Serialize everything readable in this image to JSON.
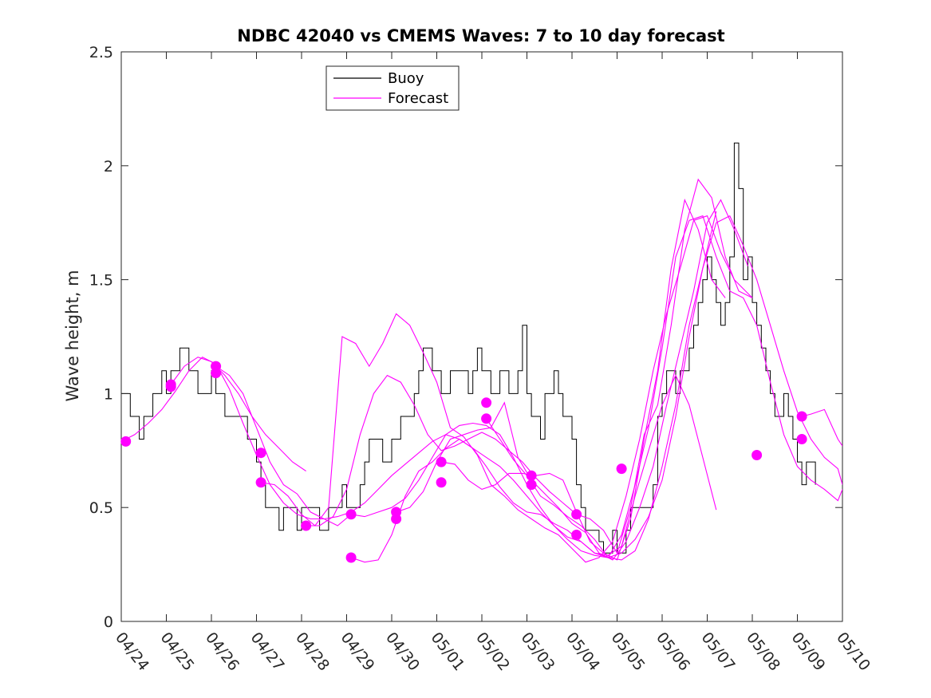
{
  "chart_data": {
    "type": "line",
    "title": "NDBC 42040 vs CMEMS Waves: 7 to 10 day forecast",
    "xlabel": "",
    "ylabel": "Wave height, m",
    "xlim": [
      0,
      16
    ],
    "ylim": [
      0,
      2.5
    ],
    "x_tick_labels": [
      "04/24",
      "04/25",
      "04/26",
      "04/27",
      "04/28",
      "04/29",
      "04/30",
      "05/01",
      "05/02",
      "05/03",
      "05/04",
      "05/05",
      "05/06",
      "05/07",
      "05/08",
      "05/09",
      "05/10"
    ],
    "y_ticks": [
      0,
      0.5,
      1,
      1.5,
      2,
      2.5
    ],
    "y_tick_labels": [
      "0",
      "0.5",
      "1",
      "1.5",
      "2",
      "2.5"
    ],
    "grid": false,
    "legend": {
      "position": "top-left",
      "entries": [
        {
          "label": "Buoy",
          "color": "#000000"
        },
        {
          "label": "Forecast",
          "color": "#ff00ff"
        }
      ]
    },
    "colors": {
      "buoy": "#000000",
      "forecast": "#ff00ff"
    },
    "buoy": {
      "name": "Buoy",
      "x": [
        0.0,
        0.1,
        0.2,
        0.3,
        0.4,
        0.5,
        0.6,
        0.7,
        0.8,
        0.9,
        1.0,
        1.1,
        1.2,
        1.3,
        1.4,
        1.5,
        1.6,
        1.7,
        1.8,
        1.9,
        2.0,
        2.1,
        2.2,
        2.3,
        2.4,
        2.5,
        2.6,
        2.7,
        2.8,
        2.9,
        3.0,
        3.1,
        3.2,
        3.3,
        3.4,
        3.5,
        3.6,
        3.7,
        3.8,
        3.9,
        4.0,
        4.1,
        4.2,
        4.3,
        4.4,
        4.5,
        4.6,
        4.7,
        4.8,
        4.9,
        5.0,
        5.1,
        5.2,
        5.3,
        5.4,
        5.5,
        5.6,
        5.7,
        5.8,
        5.9,
        6.0,
        6.1,
        6.2,
        6.3,
        6.4,
        6.5,
        6.6,
        6.7,
        6.8,
        6.9,
        7.0,
        7.1,
        7.2,
        7.3,
        7.4,
        7.5,
        7.6,
        7.7,
        7.8,
        7.9,
        8.0,
        8.1,
        8.2,
        8.3,
        8.4,
        8.5,
        8.6,
        8.7,
        8.8,
        8.9,
        9.0,
        9.1,
        9.2,
        9.3,
        9.4,
        9.5,
        9.6,
        9.7,
        9.8,
        9.9,
        10.0,
        10.1,
        10.2,
        10.3,
        10.4,
        10.5,
        10.6,
        10.7,
        10.8,
        10.9,
        11.0,
        11.1,
        11.2,
        11.3,
        11.4,
        11.5,
        11.6,
        11.7,
        11.8,
        11.9,
        12.0,
        12.1,
        12.2,
        12.3,
        12.4,
        12.5,
        12.6,
        12.7,
        12.8,
        12.9,
        13.0,
        13.1,
        13.2,
        13.3,
        13.4,
        13.5,
        13.6,
        13.7,
        13.8,
        13.9,
        14.0,
        14.1,
        14.2,
        14.3,
        14.4,
        14.5,
        14.6,
        14.7,
        14.8,
        14.9,
        15.0,
        15.1,
        15.2,
        15.3,
        15.4
      ],
      "y": [
        1.0,
        1.0,
        0.9,
        0.9,
        0.8,
        0.9,
        0.9,
        1.0,
        1.0,
        1.1,
        1.0,
        1.1,
        1.1,
        1.2,
        1.2,
        1.1,
        1.1,
        1.0,
        1.0,
        1.0,
        1.1,
        1.0,
        1.0,
        0.9,
        0.9,
        0.9,
        0.9,
        0.9,
        0.8,
        0.8,
        0.7,
        0.6,
        0.5,
        0.5,
        0.5,
        0.4,
        0.5,
        0.5,
        0.5,
        0.4,
        0.5,
        0.5,
        0.5,
        0.5,
        0.4,
        0.4,
        0.5,
        0.5,
        0.5,
        0.6,
        0.5,
        0.5,
        0.5,
        0.6,
        0.7,
        0.8,
        0.8,
        0.8,
        0.7,
        0.7,
        0.8,
        0.8,
        0.9,
        0.9,
        0.9,
        1.0,
        1.1,
        1.2,
        1.2,
        1.1,
        1.1,
        1.0,
        1.0,
        1.1,
        1.1,
        1.1,
        1.1,
        1.0,
        1.1,
        1.2,
        1.1,
        1.1,
        1.0,
        1.0,
        1.1,
        1.1,
        1.0,
        1.0,
        1.1,
        1.3,
        1.0,
        0.9,
        0.9,
        0.8,
        1.0,
        1.0,
        1.1,
        1.0,
        0.9,
        0.9,
        0.8,
        0.6,
        0.5,
        0.4,
        0.4,
        0.4,
        0.35,
        0.3,
        0.3,
        0.4,
        0.3,
        0.3,
        0.4,
        0.5,
        0.5,
        0.5,
        0.5,
        0.5,
        0.6,
        0.9,
        1.0,
        1.1,
        1.1,
        1.0,
        1.1,
        1.1,
        1.2,
        1.3,
        1.4,
        1.5,
        1.6,
        1.5,
        1.4,
        1.3,
        1.4,
        1.6,
        2.1,
        1.9,
        1.5,
        1.6,
        1.4,
        1.3,
        1.2,
        1.1,
        1.0,
        0.9,
        0.9,
        1.0,
        0.9,
        0.8,
        0.7,
        0.6,
        0.7,
        0.7,
        0.6
      ]
    },
    "forecasts": [
      {
        "x": [
          0.0,
          0.3,
          0.6,
          0.9,
          1.2,
          1.5,
          1.8,
          2.1,
          2.4,
          2.7,
          3.0,
          3.3,
          3.6,
          3.9,
          4.2,
          4.5,
          4.8,
          5.1,
          5.4,
          5.7,
          6.0,
          6.3,
          6.6,
          6.9,
          7.2,
          7.5,
          7.8,
          8.1,
          8.4,
          8.7,
          9.0,
          9.3,
          9.6,
          9.9,
          10.2,
          10.5,
          10.8,
          11.1,
          11.4,
          11.7,
          12.0,
          12.3,
          12.6,
          12.9,
          13.2,
          13.5,
          13.8,
          14.1,
          14.4,
          14.7,
          15.0,
          15.3,
          15.6,
          15.9,
          16.0
        ],
        "y": [
          0.79,
          0.82,
          0.87,
          0.93,
          1.01,
          1.1,
          1.16,
          1.13,
          1.02,
          0.87,
          0.73,
          0.6,
          0.52,
          0.47,
          0.45,
          0.45,
          0.46,
          0.48,
          0.52,
          0.58,
          0.64,
          0.69,
          0.74,
          0.79,
          0.82,
          0.8,
          0.76,
          0.72,
          0.68,
          0.62,
          0.55,
          0.48,
          0.42,
          0.36,
          0.31,
          0.29,
          0.28,
          0.3,
          0.36,
          0.46,
          0.62,
          0.9,
          1.25,
          1.55,
          1.75,
          1.78,
          1.65,
          1.5,
          1.3,
          1.1,
          0.92,
          0.8,
          0.72,
          0.67,
          0.6
        ]
      },
      {
        "x": [
          1.1,
          1.4,
          1.7,
          2.0,
          2.3,
          2.6,
          2.9,
          3.2,
          3.5,
          3.8,
          4.1
        ],
        "y": [
          1.04,
          1.12,
          1.16,
          1.14,
          1.08,
          1.0,
          0.9,
          0.82,
          0.76,
          0.7,
          0.66
        ]
      },
      {
        "x": [
          2.1,
          2.4,
          2.7,
          3.0,
          3.3,
          3.6,
          3.9,
          4.2,
          4.5,
          4.8,
          5.1,
          5.4,
          5.7,
          6.0,
          6.3,
          6.6,
          6.9,
          7.2,
          7.5,
          7.8,
          8.1,
          8.4,
          8.7,
          9.0,
          9.3,
          9.6,
          9.9,
          10.2,
          10.5,
          10.8,
          11.1,
          11.4,
          11.7,
          12.0,
          12.3,
          12.6,
          12.9,
          13.2
        ],
        "y": [
          1.12,
          1.08,
          1.0,
          0.85,
          0.7,
          0.6,
          0.56,
          0.48,
          0.45,
          0.42,
          0.47,
          0.46,
          0.48,
          0.5,
          0.54,
          0.62,
          0.72,
          0.82,
          0.86,
          0.87,
          0.86,
          0.82,
          0.72,
          0.6,
          0.5,
          0.42,
          0.37,
          0.35,
          0.3,
          0.28,
          0.27,
          0.31,
          0.45,
          0.68,
          0.95,
          1.3,
          1.55,
          1.8
        ]
      },
      {
        "x": [
          3.1,
          3.4,
          3.7,
          4.0,
          4.3,
          4.6,
          4.9,
          5.2,
          5.5,
          5.8,
          6.1,
          6.4,
          6.7,
          7.0,
          7.3,
          7.6,
          7.9,
          8.2,
          8.5,
          8.8,
          9.1,
          9.4,
          9.7,
          10.0,
          10.3,
          10.6,
          10.9,
          11.2,
          11.5,
          11.8,
          12.1,
          12.4,
          12.7,
          13.0,
          13.3,
          13.6,
          14.0
        ],
        "y": [
          0.61,
          0.6,
          0.55,
          0.47,
          0.42,
          0.5,
          1.25,
          1.22,
          1.12,
          1.22,
          1.35,
          1.3,
          1.18,
          1.05,
          0.85,
          0.81,
          0.73,
          0.6,
          0.55,
          0.49,
          0.45,
          0.41,
          0.38,
          0.32,
          0.26,
          0.28,
          0.35,
          0.55,
          0.8,
          1.1,
          1.35,
          1.55,
          1.76,
          1.78,
          1.62,
          1.5,
          1.42
        ]
      },
      {
        "x": [
          4.1,
          4.4,
          4.7,
          5.0,
          5.3,
          5.6,
          5.9,
          6.2,
          6.5,
          6.8,
          7.1,
          7.4,
          7.7,
          8.0,
          8.3,
          8.6,
          8.9,
          9.2,
          9.5,
          9.8,
          10.1,
          10.4,
          10.7,
          11.0,
          11.3,
          11.6,
          11.9,
          12.2,
          12.5,
          12.8,
          13.1,
          13.4,
          13.7,
          14.0
        ],
        "y": [
          0.42,
          0.42,
          0.46,
          0.58,
          0.82,
          1.0,
          1.08,
          1.05,
          0.95,
          0.82,
          0.75,
          0.77,
          0.8,
          0.83,
          0.8,
          0.75,
          0.7,
          0.63,
          0.57,
          0.52,
          0.47,
          0.45,
          0.4,
          0.3,
          0.5,
          0.82,
          0.95,
          1.3,
          1.72,
          1.94,
          1.86,
          1.6,
          1.45,
          1.42
        ]
      },
      {
        "x": [
          5.1,
          5.4,
          5.7,
          6.0,
          6.3,
          6.6,
          6.9,
          7.2,
          7.5,
          7.8,
          8.1,
          8.4,
          8.7,
          9.0,
          9.3,
          9.6,
          9.9,
          10.2,
          10.5,
          10.8,
          11.1,
          11.4,
          11.7,
          12.0,
          12.3,
          12.6,
          12.9,
          13.2
        ],
        "y": [
          0.28,
          0.26,
          0.27,
          0.38,
          0.55,
          0.66,
          0.7,
          0.76,
          0.8,
          0.76,
          0.68,
          0.59,
          0.52,
          0.48,
          0.47,
          0.43,
          0.4,
          0.35,
          0.3,
          0.29,
          0.33,
          0.55,
          0.75,
          0.95,
          1.08,
          0.95,
          0.72,
          0.49
        ]
      },
      {
        "x": [
          6.1,
          6.4,
          6.7,
          7.0,
          7.3,
          7.6,
          7.9,
          8.2,
          8.5,
          8.8,
          9.1,
          9.4,
          9.7,
          10.0,
          10.3,
          10.6,
          10.9,
          11.2,
          11.5,
          11.8,
          12.1,
          12.4,
          12.7,
          13.0,
          13.3,
          13.6,
          13.9
        ],
        "y": [
          0.48,
          0.5,
          0.57,
          0.7,
          0.8,
          0.82,
          0.84,
          0.85,
          0.96,
          0.72,
          0.62,
          0.56,
          0.5,
          0.43,
          0.39,
          0.3,
          0.27,
          0.35,
          0.5,
          0.68,
          0.95,
          1.2,
          1.45,
          1.75,
          1.85,
          1.72,
          1.56
        ]
      },
      {
        "x": [
          7.1,
          7.4,
          7.7,
          8.0,
          8.3,
          8.6,
          8.9,
          9.2,
          9.5,
          9.8,
          10.1,
          10.4,
          10.7,
          11.0,
          11.3,
          11.6,
          11.9,
          12.2,
          12.5,
          12.8,
          13.1,
          13.4
        ],
        "y": [
          0.7,
          0.69,
          0.62,
          0.58,
          0.6,
          0.65,
          0.65,
          0.64,
          0.65,
          0.62,
          0.48,
          0.35,
          0.3,
          0.27,
          0.45,
          0.8,
          1.1,
          1.55,
          1.85,
          1.72,
          1.5,
          1.42
        ]
      },
      {
        "x": [
          8.1,
          8.4,
          8.7,
          9.0,
          9.3,
          9.6,
          9.9,
          10.2,
          10.5,
          10.8,
          11.1,
          11.4,
          11.7,
          12.0,
          12.3,
          12.6,
          12.9,
          13.2,
          13.5,
          13.8,
          14.1,
          14.4,
          14.7,
          15.0,
          15.3,
          15.6,
          15.9,
          16.0
        ],
        "y": [
          0.89,
          0.8,
          0.71,
          0.64,
          0.55,
          0.51,
          0.46,
          0.42,
          0.36,
          0.28,
          0.38,
          0.6,
          0.85,
          1.2,
          1.6,
          1.76,
          1.78,
          1.6,
          1.45,
          1.42,
          1.3,
          1.05,
          0.82,
          0.68,
          0.62,
          0.58,
          0.53,
          0.58
        ]
      },
      {
        "x": [
          15.1,
          15.3,
          15.6,
          15.9,
          16.0
        ],
        "y": [
          0.9,
          0.91,
          0.93,
          0.8,
          0.77
        ]
      }
    ],
    "forecast_start_points": [
      {
        "x": 0.1,
        "y": 0.79
      },
      {
        "x": 1.1,
        "y": 1.03
      },
      {
        "x": 1.1,
        "y": 1.04
      },
      {
        "x": 2.1,
        "y": 1.12
      },
      {
        "x": 2.1,
        "y": 1.09
      },
      {
        "x": 3.1,
        "y": 0.74
      },
      {
        "x": 3.1,
        "y": 0.61
      },
      {
        "x": 4.1,
        "y": 0.42
      },
      {
        "x": 5.1,
        "y": 0.47
      },
      {
        "x": 5.1,
        "y": 0.28
      },
      {
        "x": 6.1,
        "y": 0.48
      },
      {
        "x": 6.1,
        "y": 0.45
      },
      {
        "x": 7.1,
        "y": 0.7
      },
      {
        "x": 7.1,
        "y": 0.61
      },
      {
        "x": 8.1,
        "y": 0.96
      },
      {
        "x": 8.1,
        "y": 0.89
      },
      {
        "x": 9.1,
        "y": 0.64
      },
      {
        "x": 9.1,
        "y": 0.6
      },
      {
        "x": 10.1,
        "y": 0.47
      },
      {
        "x": 10.1,
        "y": 0.38
      },
      {
        "x": 11.1,
        "y": 0.67
      },
      {
        "x": 14.1,
        "y": 0.73
      },
      {
        "x": 15.1,
        "y": 0.9
      },
      {
        "x": 15.1,
        "y": 0.8
      }
    ]
  }
}
